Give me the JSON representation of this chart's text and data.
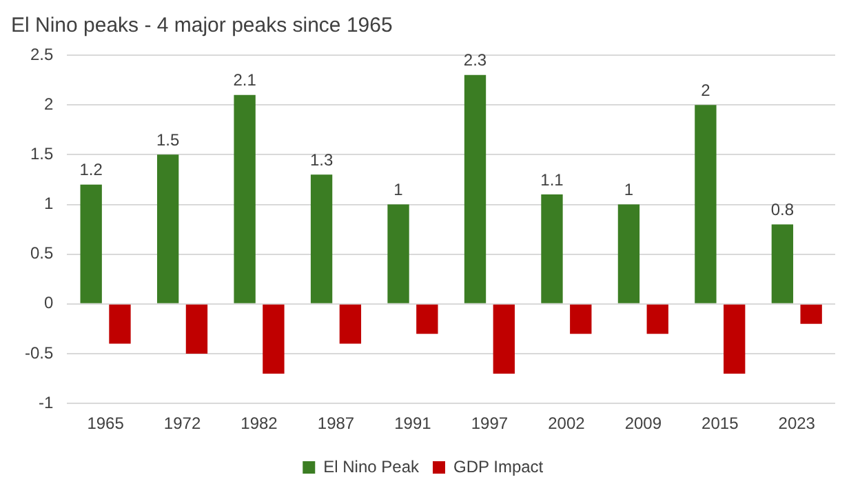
{
  "chart_data": {
    "type": "bar",
    "title": "El Nino peaks - 4 major peaks since 1965",
    "categories": [
      "1965",
      "1972",
      "1982",
      "1987",
      "1991",
      "1997",
      "2002",
      "2009",
      "2015",
      "2023"
    ],
    "series": [
      {
        "name": "El Nino Peak",
        "color": "#3b7d23",
        "values": [
          1.2,
          1.5,
          2.1,
          1.3,
          1,
          2.3,
          1.1,
          1,
          2,
          0.8
        ],
        "value_labels": [
          "1.2",
          "1.5",
          "2.1",
          "1.3",
          "1",
          "2.3",
          "1.1",
          "1",
          "2",
          "0.8"
        ]
      },
      {
        "name": "GDP Impact",
        "color": "#c00000",
        "values": [
          -0.4,
          -0.5,
          -0.7,
          -0.4,
          -0.3,
          -0.7,
          -0.3,
          -0.3,
          -0.7,
          -0.2
        ]
      }
    ],
    "ylim": [
      -1,
      2.5
    ],
    "yticks": [
      -1,
      -0.5,
      0,
      0.5,
      1,
      1.5,
      2,
      2.5
    ],
    "grid": "y",
    "legend": "bottom"
  }
}
